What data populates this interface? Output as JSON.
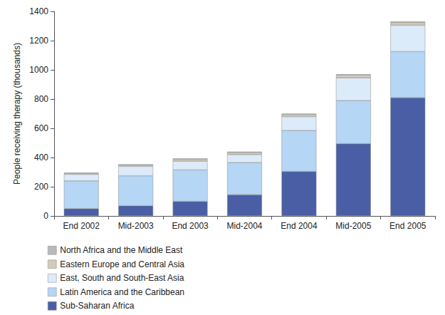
{
  "chart_data": {
    "type": "bar",
    "y_label": "People receiving therapy (thousands)",
    "categories": [
      "End 2002",
      "Mid-2003",
      "End 2003",
      "Mid-2004",
      "End 2004",
      "Mid-2005",
      "End 2005"
    ],
    "stacked": true,
    "grid": false,
    "legend": "bottom",
    "ylim": [
      0,
      1400
    ],
    "yticks": [
      0,
      200,
      400,
      600,
      800,
      1000,
      1200,
      1400
    ],
    "series": [
      {
        "name": "Sub-Saharan Africa",
        "color": "#4a5ea6",
        "values": [
          50,
          70,
          100,
          145,
          305,
          495,
          810
        ]
      },
      {
        "name": "Latin America and the Caribbean",
        "color": "#b5d6f4",
        "values": [
          190,
          205,
          215,
          220,
          280,
          295,
          315
        ]
      },
      {
        "name": "East, South and South-East Asia",
        "color": "#dcebfa",
        "values": [
          45,
          65,
          60,
          55,
          95,
          155,
          180
        ]
      },
      {
        "name": "Eastern Europe and Central Asia",
        "color": "#d3c9b9",
        "values": [
          8,
          10,
          14,
          15,
          15,
          20,
          20
        ]
      },
      {
        "name": "North Africa and the Middle East",
        "color": "#b9b9b9",
        "values": [
          2,
          3,
          4,
          5,
          5,
          5,
          5
        ]
      }
    ]
  }
}
